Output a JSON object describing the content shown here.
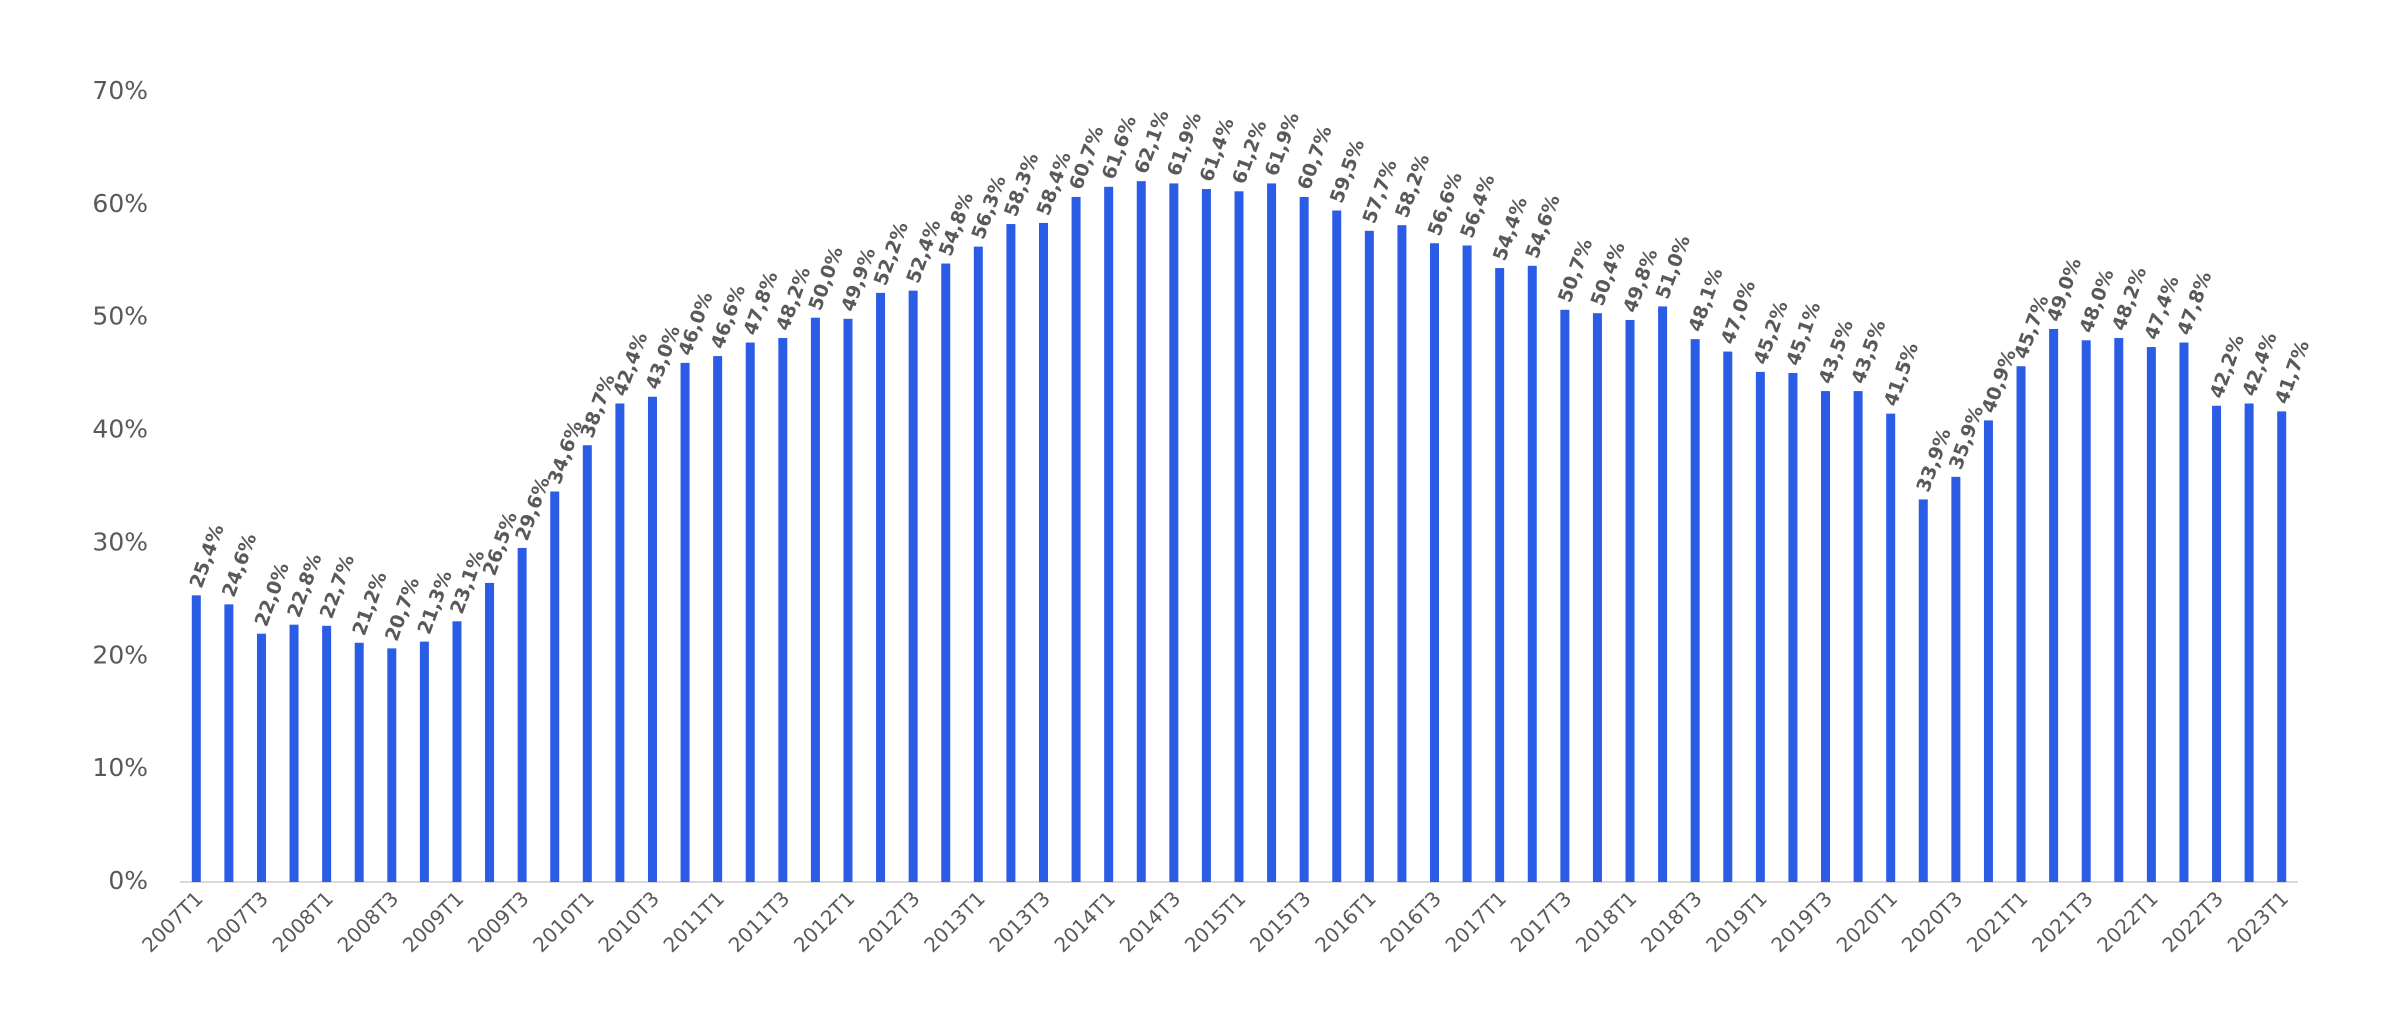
{
  "chart_data": {
    "type": "bar",
    "categories": [
      "2007T1",
      null,
      "2007T3",
      null,
      "2008T1",
      null,
      "2008T3",
      null,
      "2009T1",
      null,
      "2009T3",
      null,
      "2010T1",
      null,
      "2010T3",
      null,
      "2011T1",
      null,
      "2011T3",
      null,
      "2012T1",
      null,
      "2012T3",
      null,
      "2013T1",
      null,
      "2013T3",
      null,
      "2014T1",
      null,
      "2014T3",
      null,
      "2015T1",
      null,
      "2015T3",
      null,
      "2016T1",
      null,
      "2016T3",
      null,
      "2017T1",
      null,
      "2017T3",
      null,
      "2018T1",
      null,
      "2018T3",
      null,
      "2019T1",
      null,
      "2019T3",
      null,
      "2020T1",
      null,
      "2020T3",
      null,
      "2021T1",
      null,
      "2021T3",
      null,
      "2022T1",
      null,
      "2022T3",
      null,
      "2023T1"
    ],
    "values": [
      25.4,
      24.6,
      22.0,
      22.8,
      22.7,
      21.2,
      20.7,
      21.3,
      23.1,
      26.5,
      29.6,
      34.6,
      38.7,
      42.4,
      43.0,
      46.0,
      46.6,
      47.8,
      48.2,
      50.0,
      49.9,
      52.2,
      52.4,
      54.8,
      56.3,
      58.3,
      58.4,
      60.7,
      61.6,
      62.1,
      61.9,
      61.4,
      61.2,
      61.9,
      60.7,
      59.5,
      57.7,
      58.2,
      56.6,
      56.4,
      54.4,
      54.6,
      50.7,
      50.4,
      49.8,
      51.0,
      48.1,
      47.0,
      45.2,
      45.1,
      43.5,
      43.5,
      41.5,
      33.9,
      35.9,
      40.9,
      45.7,
      49.0,
      48.0,
      48.2,
      47.4,
      47.8,
      42.2,
      42.4,
      41.7
    ],
    "value_labels": [
      "25,4%",
      "24,6%",
      "22,0%",
      "22,8%",
      "22,7%",
      "21,2%",
      "20,7%",
      "21,3%",
      "23,1%",
      "26,5%",
      "29,6%",
      "34,6%",
      "38,7%",
      "42,4%",
      "43,0%",
      "46,0%",
      "46,6%",
      "47,8%",
      "48,2%",
      "50,0%",
      "49,9%",
      "52,2%",
      "52,4%",
      "54,8%",
      "56,3%",
      "58,3%",
      "58,4%",
      "60,7%",
      "61,6%",
      "62,1%",
      "61,9%",
      "61,4%",
      "61,2%",
      "61,9%",
      "60,7%",
      "59,5%",
      "57,7%",
      "58,2%",
      "56,6%",
      "56,4%",
      "54,4%",
      "54,6%",
      "50,7%",
      "50,4%",
      "49,8%",
      "51,0%",
      "48,1%",
      "47,0%",
      "45,2%",
      "45,1%",
      "43,5%",
      "43,5%",
      "41,5%",
      "33,9%",
      "35,9%",
      "40,9%",
      "45,7%",
      "49,0%",
      "48,0%",
      "48,2%",
      "47,4%",
      "47,8%",
      "42,2%",
      "42,4%",
      "41,7%"
    ],
    "color": "#2a5ce6",
    "ylim": [
      0,
      70
    ],
    "yticks": [
      {
        "value": 0,
        "label": "0%"
      },
      {
        "value": 10,
        "label": "10%"
      },
      {
        "value": 20,
        "label": "20%"
      },
      {
        "value": 30,
        "label": "30%"
      },
      {
        "value": 40,
        "label": "40%"
      },
      {
        "value": 50,
        "label": "50%"
      },
      {
        "value": 60,
        "label": "60%"
      },
      {
        "value": 70,
        "label": "70%"
      }
    ],
    "grid": false
  }
}
